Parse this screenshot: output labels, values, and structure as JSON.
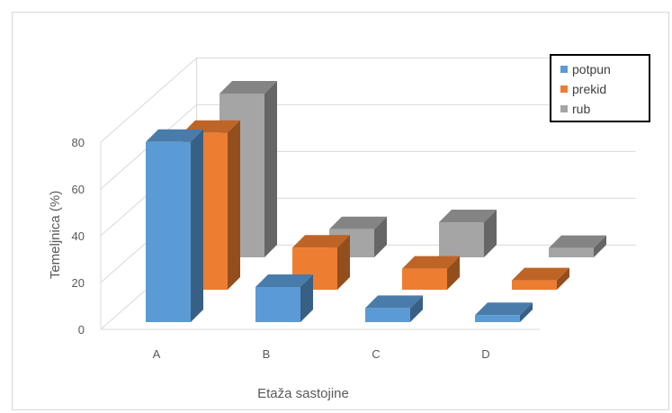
{
  "chart_data": {
    "type": "bar",
    "subtype": "3d-clustered-column",
    "categories": [
      "A",
      "B",
      "C",
      "D"
    ],
    "series": [
      {
        "name": "potpun",
        "values": [
          77,
          15,
          6,
          3
        ],
        "color": "#5b9bd5"
      },
      {
        "name": "prekid",
        "values": [
          67,
          18,
          9,
          4
        ],
        "color": "#ed7d31"
      },
      {
        "name": "rub",
        "values": [
          70,
          12,
          15,
          4
        ],
        "color": "#a5a5a5"
      }
    ],
    "title": "",
    "xlabel": "Etaža sastojine",
    "ylabel": "Temeljnica (%)",
    "ylim": [
      0,
      80
    ],
    "yticks": [
      "0",
      "20",
      "40",
      "60",
      "80"
    ],
    "legend_position": "top-right",
    "grid": true
  }
}
